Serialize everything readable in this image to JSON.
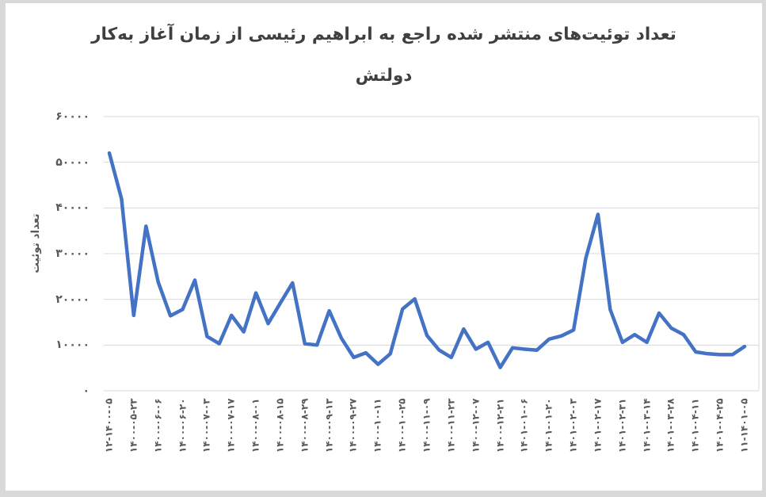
{
  "page": {
    "background_color": "#d9d9d9",
    "canvas_color": "#ffffff"
  },
  "title_lines": [
    "تعداد توئیت‌های منتشر شده راجع به ابراهیم رئیسی از زمان آغاز به‌کار",
    "دولتش"
  ],
  "chart_data": {
    "type": "line",
    "title": "تعداد توئیت‌های منتشر شده راجع به ابراهیم رئیسی از زمان آغاز به‌کار دولتش",
    "ylabel": "تعداد توئیت",
    "xlabel": "",
    "ylim": [
      0,
      60000
    ],
    "y_tick_step": 10000,
    "y_tick_labels_top_to_bottom": [
      "۶۰۰۰۰",
      "۵۰۰۰۰",
      "۴۰۰۰۰",
      "۳۰۰۰۰",
      "۲۰۰۰۰",
      "۱۰۰۰۰",
      "۰"
    ],
    "grid": "horizontal",
    "legend": "none",
    "line_color": "#4472C4",
    "gridline_color": "#d9d9d9",
    "title_color": "#3f3f3f",
    "text_color": "#595959",
    "points_per_label": 2,
    "x_tick_labels": [
      "۱۲-۱۴۰۰-۰۵",
      "۱۴۰۰-۰۵-۲۳",
      "۱۴۰۰-۰۶-۰۶",
      "۱۴۰۰-۰۶-۲۰",
      "۱۴۰۰-۰۷-۰۳",
      "۱۴۰۰-۰۷-۱۷",
      "۱۴۰۰-۰۸-۰۱",
      "۱۴۰۰-۰۸-۱۵",
      "۱۴۰۰-۰۸-۲۹",
      "۱۴۰۰-۰۹-۱۳",
      "۱۴۰۰-۰۹-۲۷",
      "۱۴۰۰-۱۰-۱۱",
      "۱۴۰۰-۱۰-۲۵",
      "۱۴۰۰-۱۱-۰۹",
      "۱۴۰۰-۱۱-۲۳",
      "۱۴۰۰-۱۲-۰۷",
      "۱۴۰۰-۱۲-۲۱",
      "۱۴۰۱-۰۱-۰۶",
      "۱۴۰۱-۰۱-۲۰",
      "۱۴۰۱-۰۲-۰۳",
      "۱۴۰۱-۰۲-۱۷",
      "۱۴۰۱-۰۲-۳۱",
      "۱۴۰۱-۰۳-۱۴",
      "۱۴۰۱-۰۳-۲۸",
      "۱۴۰۱-۰۴-۱۱",
      "۱۴۰۱-۰۴-۲۵",
      "۱۱-۱۴۰۱-۰۵"
    ],
    "values": [
      52000,
      42000,
      16500,
      36000,
      23800,
      16400,
      17800,
      24200,
      11900,
      10300,
      16500,
      12900,
      21400,
      14700,
      19200,
      23600,
      10300,
      10000,
      17500,
      11500,
      7300,
      8300,
      5800,
      8100,
      17900,
      20100,
      12100,
      8900,
      7300,
      13500,
      9100,
      10600,
      5100,
      9400,
      9100,
      8900,
      11300,
      12000,
      13300,
      29000,
      38600,
      17800,
      10600,
      12300,
      10600,
      17000,
      13700,
      12300,
      8500,
      8100,
      7900,
      7900,
      9700
    ]
  }
}
